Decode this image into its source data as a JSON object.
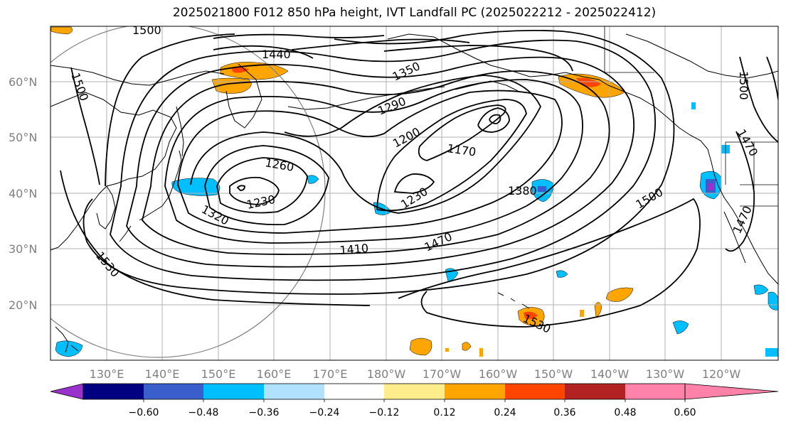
{
  "title": "2025021800 F012 850 hPa height, IVT Landfall PC (2025022212 - 2025022412)",
  "latitude_labels": [
    "60°N",
    "50°N",
    "40°N",
    "30°N",
    "20°N"
  ],
  "longitude_labels": [
    "130°E",
    "140°E",
    "150°E",
    "160°E",
    "170°E",
    "180°W",
    "170°W",
    "160°W",
    "150°W",
    "140°W",
    "130°W",
    "120°W"
  ],
  "contour_labels": [
    {
      "text": "1500"
    },
    {
      "text": "1440"
    },
    {
      "text": "1350"
    },
    {
      "text": "1500"
    },
    {
      "text": "1290"
    },
    {
      "text": "1200"
    },
    {
      "text": "1170"
    },
    {
      "text": "1260"
    },
    {
      "text": "1230"
    },
    {
      "text": "1320"
    },
    {
      "text": "1230"
    },
    {
      "text": "1380"
    },
    {
      "text": "1500"
    },
    {
      "text": "1410"
    },
    {
      "text": "1470"
    },
    {
      "text": "1530"
    },
    {
      "text": "1530"
    },
    {
      "text": "1500"
    },
    {
      "text": "1470"
    },
    {
      "text": "1470"
    }
  ],
  "colorbar": {
    "colors": [
      "#9932cc",
      "#000080",
      "#3a5fcd",
      "#00bfff",
      "#b0e2ff",
      "#ffffff",
      "#ffec8b",
      "#ffa500",
      "#ff4500",
      "#b22222",
      "#ff82ab"
    ],
    "tick_labels": [
      "−0.60",
      "−0.48",
      "−0.36",
      "−0.24",
      "−0.12",
      "0.12",
      "0.24",
      "0.36",
      "0.48",
      "0.60"
    ]
  }
}
